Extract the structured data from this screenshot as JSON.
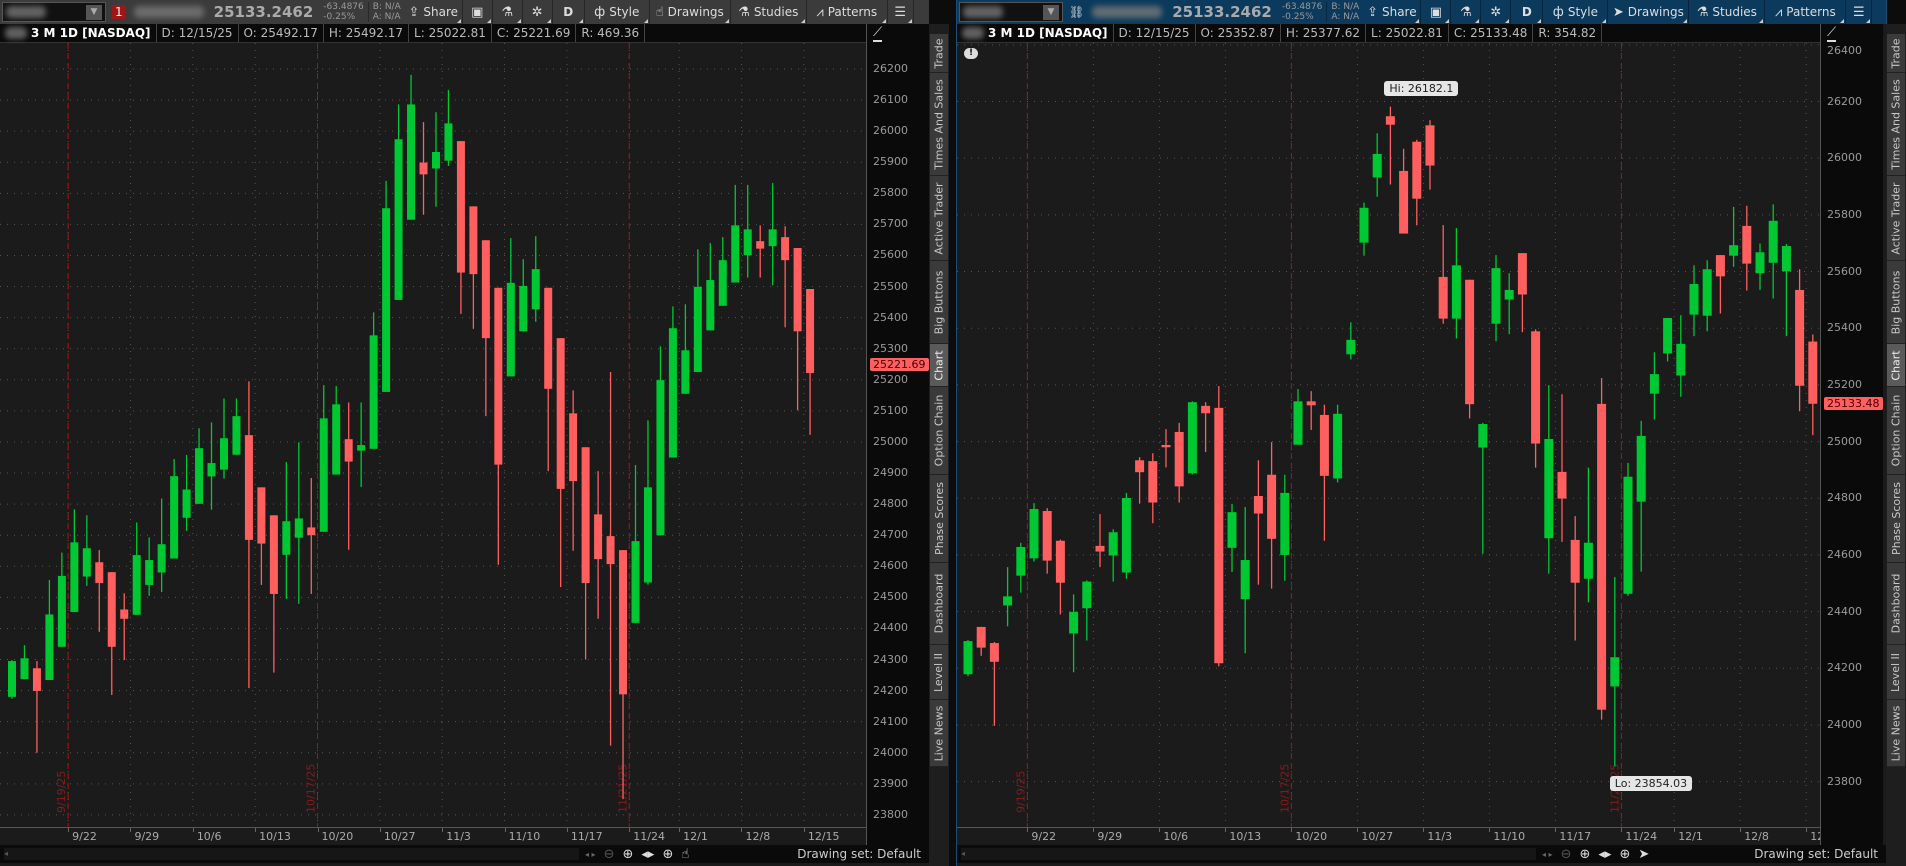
{
  "colors": {
    "up": "#00c832",
    "down": "#ff5f5f",
    "left_toolbar": "#3b3b3b",
    "right_toolbar": "#0b3a5c",
    "expiration_line": "#b01010",
    "grid": "#555555"
  },
  "panels": [
    {
      "toolbar": {
        "badge": "1",
        "last_price": "25133.2462",
        "change": "-63.4876",
        "change_pct": "-0.25%",
        "bid": "B: N/A",
        "ask": "A: N/A",
        "share": "Share",
        "period": "D",
        "style": "Style",
        "drawings": "Drawings",
        "studies": "Studies",
        "patterns": "Patterns",
        "badge_icon": "red-number-badge",
        "drawings_icon": "hand-pointer-icon"
      },
      "info": {
        "title": "3 M 1D [NASDAQ]",
        "date": "D: 12/15/25",
        "open": "O: 25492.17",
        "high": "H: 25492.17",
        "low": "L: 25022.81",
        "close": "C: 25221.69",
        "range": "R: 469.36"
      },
      "last_tag": "25221.69",
      "drawing_set": "Drawing set: Default"
    },
    {
      "toolbar": {
        "badge": "",
        "last_price": "25133.2462",
        "change": "-63.4876",
        "change_pct": "-0.25%",
        "bid": "B: N/A",
        "ask": "A: N/A",
        "share": "Share",
        "period": "D",
        "style": "Style",
        "drawings": "Drawings",
        "studies": "Studies",
        "patterns": "Patterns",
        "badge_icon": "link-icon",
        "drawings_icon": "arrow-pointer-icon"
      },
      "info": {
        "title": "3 M 1D [NASDAQ]",
        "date": "D: 12/15/25",
        "open": "O: 25352.87",
        "high": "H: 25377.62",
        "low": "L: 25022.81",
        "close": "C: 25133.48",
        "range": "R: 354.82"
      },
      "last_tag": "25133.48",
      "hi_label": "Hi: 26182.1",
      "lo_label": "Lo: 23854.03",
      "drawing_set": "Drawing set: Default"
    }
  ],
  "sidebar_tabs": [
    "Trade",
    "Times And Sales",
    "Active Trader",
    "Big Buttons",
    "Chart",
    "Option Chain",
    "Phase Scores",
    "Dashboard",
    "Level II",
    "Live News"
  ],
  "sidebar_active": "Chart",
  "chart_data": [
    {
      "type": "candlestick",
      "x": [
        "9/15",
        "9/16",
        "9/17",
        "9/18",
        "9/19",
        "9/22",
        "9/23",
        "9/24",
        "9/25",
        "9/26",
        "9/29",
        "9/30",
        "10/1",
        "10/2",
        "10/3",
        "10/6",
        "10/7",
        "10/8",
        "10/9",
        "10/10",
        "10/13",
        "10/14",
        "10/15",
        "10/16",
        "10/17",
        "10/20",
        "10/21",
        "10/22",
        "10/23",
        "10/24",
        "10/27",
        "10/28",
        "10/29",
        "10/30",
        "10/31",
        "11/3",
        "11/4",
        "11/5",
        "11/6",
        "11/7",
        "11/10",
        "11/11",
        "11/12",
        "11/13",
        "11/14",
        "11/17",
        "11/18",
        "11/19",
        "11/20",
        "11/21",
        "11/24",
        "11/25",
        "11/26",
        "11/28",
        "12/1",
        "12/2",
        "12/3",
        "12/4",
        "12/5",
        "12/8",
        "12/9",
        "12/10",
        "12/11",
        "12/12",
        "12/15"
      ],
      "ohlc": [
        [
          24180,
          24298,
          24174,
          24295
        ],
        [
          24237,
          24346,
          24237,
          24304
        ],
        [
          24272,
          24295,
          24000,
          24199
        ],
        [
          24234,
          24556,
          24234,
          24445
        ],
        [
          24341,
          24644,
          24341,
          24569
        ],
        [
          24453,
          24783,
          24453,
          24677
        ],
        [
          24567,
          24764,
          24537,
          24658
        ],
        [
          24613,
          24652,
          24389,
          24546
        ],
        [
          24581,
          24581,
          24186,
          24341
        ],
        [
          24461,
          24513,
          24298,
          24431
        ],
        [
          24444,
          24741,
          24444,
          24636
        ],
        [
          24540,
          24693,
          24505,
          24620
        ],
        [
          24580,
          24818,
          24517,
          24671
        ],
        [
          24625,
          24945,
          24625,
          24890
        ],
        [
          24756,
          24958,
          24714,
          24847
        ],
        [
          24801,
          25044,
          24801,
          24980
        ],
        [
          24889,
          25063,
          24782,
          24932
        ],
        [
          24911,
          25140,
          24882,
          25012
        ],
        [
          24959,
          25140,
          24959,
          25083
        ],
        [
          25022,
          25195,
          24208,
          24685
        ],
        [
          24854,
          24854,
          24540,
          24673
        ],
        [
          24764,
          24764,
          24258,
          24511
        ],
        [
          24637,
          24935,
          24495,
          24745
        ],
        [
          24692,
          24999,
          24479,
          24754
        ],
        [
          24725,
          24884,
          24511,
          24700
        ],
        [
          24711,
          25183,
          24711,
          25076
        ],
        [
          24895,
          25180,
          24895,
          25121
        ],
        [
          25009,
          25127,
          24653,
          24937
        ],
        [
          24972,
          25127,
          24855,
          24990
        ],
        [
          24978,
          25417,
          24978,
          25343
        ],
        [
          25161,
          25840,
          25161,
          25752
        ],
        [
          25457,
          26086,
          25457,
          25974
        ],
        [
          25715,
          26181,
          25715,
          26086
        ],
        [
          25899,
          26029,
          25731,
          25861
        ],
        [
          25880,
          26061,
          25757,
          25933
        ],
        [
          25905,
          26133,
          25888,
          26025
        ],
        [
          25968,
          25968,
          25412,
          25545
        ],
        [
          25758,
          25758,
          25364,
          25540
        ],
        [
          25649,
          25649,
          25083,
          25334
        ],
        [
          25496,
          25496,
          24605,
          24927
        ],
        [
          25211,
          25656,
          25211,
          25512
        ],
        [
          25356,
          25588,
          25356,
          25502
        ],
        [
          25427,
          25662,
          25387,
          25556
        ],
        [
          25496,
          25496,
          24906,
          25171
        ],
        [
          25334,
          25334,
          24533,
          24849
        ],
        [
          25092,
          25166,
          24650,
          24874
        ],
        [
          24983,
          24983,
          24300,
          24546
        ],
        [
          24767,
          24906,
          24431,
          24623
        ],
        [
          24697,
          25225,
          24023,
          24607
        ],
        [
          24652,
          24652,
          23851,
          24188
        ],
        [
          24418,
          24926,
          24418,
          24681
        ],
        [
          24548,
          25070,
          24541,
          24854
        ],
        [
          24700,
          25308,
          24700,
          25199
        ],
        [
          24950,
          25436,
          24950,
          25366
        ],
        [
          25155,
          25443,
          25155,
          25295
        ],
        [
          25225,
          25620,
          25225,
          25499
        ],
        [
          25359,
          25640,
          25359,
          25521
        ],
        [
          25438,
          25659,
          25438,
          25585
        ],
        [
          25513,
          25827,
          25513,
          25697
        ],
        [
          25601,
          25827,
          25529,
          25684
        ],
        [
          25646,
          25697,
          25529,
          25622
        ],
        [
          25630,
          25833,
          25504,
          25684
        ],
        [
          25659,
          25694,
          25369,
          25585
        ],
        [
          25624,
          25624,
          25102,
          25356
        ],
        [
          25492.17,
          25492.17,
          25022.81,
          25221.69
        ]
      ],
      "y_ticks": [
        23800,
        23900,
        24000,
        24100,
        24200,
        24300,
        24400,
        24500,
        24600,
        24700,
        24800,
        24900,
        25000,
        25100,
        25200,
        25300,
        25400,
        25500,
        25600,
        25700,
        25800,
        25900,
        26000,
        26100,
        26200
      ],
      "x_ticks": [
        "9/22",
        "9/29",
        "10/6",
        "10/13",
        "10/20",
        "10/27",
        "11/3",
        "11/10",
        "11/17",
        "11/24",
        "12/1",
        "12/8",
        "12/15"
      ],
      "expirations": [
        "9/19/25",
        "10/17/25",
        "11/21/25"
      ],
      "grid": true
    },
    {
      "type": "candlestick",
      "x": [
        "9/15",
        "9/16",
        "9/17",
        "9/18",
        "9/19",
        "9/22",
        "9/23",
        "9/24",
        "9/25",
        "9/26",
        "9/29",
        "9/30",
        "10/1",
        "10/2",
        "10/3",
        "10/6",
        "10/7",
        "10/8",
        "10/9",
        "10/10",
        "10/13",
        "10/14",
        "10/15",
        "10/16",
        "10/17",
        "10/20",
        "10/21",
        "10/22",
        "10/23",
        "10/24",
        "10/27",
        "10/28",
        "10/29",
        "10/30",
        "10/31",
        "11/3",
        "11/4",
        "11/5",
        "11/6",
        "11/7",
        "11/10",
        "11/11",
        "11/12",
        "11/13",
        "11/14",
        "11/17",
        "11/18",
        "11/19",
        "11/20",
        "11/21",
        "11/24",
        "11/25",
        "11/26",
        "11/28",
        "12/1",
        "12/2",
        "12/3",
        "12/4",
        "12/5",
        "12/8",
        "12/9",
        "12/10",
        "12/11",
        "12/12",
        "12/15"
      ],
      "ohlc": [
        [
          24179,
          24300,
          24172,
          24296
        ],
        [
          24346,
          24346,
          24244,
          24273
        ],
        [
          24289,
          24293,
          23997,
          24223
        ],
        [
          24422,
          24557,
          24348,
          24454
        ],
        [
          24527,
          24643,
          24467,
          24628
        ],
        [
          24588,
          24783,
          24577,
          24762
        ],
        [
          24755,
          24765,
          24534,
          24580
        ],
        [
          24650,
          24654,
          24390,
          24502
        ],
        [
          24323,
          24461,
          24186,
          24399
        ],
        [
          24412,
          24510,
          24298,
          24506
        ],
        [
          24632,
          24744,
          24557,
          24612
        ],
        [
          24598,
          24691,
          24506,
          24680
        ],
        [
          24538,
          24819,
          24516,
          24801
        ],
        [
          24934,
          24945,
          24781,
          24892
        ],
        [
          24931,
          24959,
          24712,
          24785
        ],
        [
          24988,
          25044,
          24909,
          24980
        ],
        [
          25034,
          25066,
          24785,
          24842
        ],
        [
          24888,
          25142,
          24884,
          25139
        ],
        [
          25126,
          25139,
          24963,
          25100
        ],
        [
          25119,
          25196,
          24207,
          24218
        ],
        [
          24625,
          24780,
          24540,
          24751
        ],
        [
          24444,
          24769,
          24253,
          24582
        ],
        [
          24808,
          24934,
          24495,
          24746
        ],
        [
          24883,
          24998,
          24481,
          24657
        ],
        [
          24600,
          24883,
          24509,
          24819
        ],
        [
          24989,
          25185,
          24989,
          25142
        ],
        [
          25142,
          25178,
          25041,
          25128
        ],
        [
          25094,
          25130,
          24650,
          24879
        ],
        [
          24870,
          25130,
          24856,
          25098
        ],
        [
          25308,
          25421,
          25290,
          25359
        ],
        [
          25702,
          25843,
          25656,
          25825
        ],
        [
          25932,
          26088,
          25864,
          26015
        ],
        [
          26148,
          26182.1,
          25907,
          26118
        ],
        [
          25955,
          26033,
          25734,
          25734
        ],
        [
          26058,
          26065,
          25763,
          25857
        ],
        [
          26116,
          26134,
          25889,
          25974
        ],
        [
          25581,
          25764,
          25416,
          25434
        ],
        [
          25434,
          25754,
          25364,
          25622
        ],
        [
          25571,
          25571,
          25082,
          25132
        ],
        [
          24979,
          25066,
          24604,
          25062
        ],
        [
          25416,
          25658,
          25354,
          25612
        ],
        [
          25501,
          25594,
          25379,
          25535
        ],
        [
          25665,
          25665,
          25386,
          25519
        ],
        [
          25389,
          25396,
          24908,
          24993
        ],
        [
          24659,
          25199,
          24534,
          25009
        ],
        [
          24893,
          25167,
          24646,
          24799
        ],
        [
          24653,
          24737,
          24298,
          24502
        ],
        [
          24516,
          24908,
          24433,
          24643
        ],
        [
          25133,
          25224,
          24019,
          24054
        ],
        [
          24136,
          24522,
          23854.03,
          24239
        ],
        [
          24463,
          24925,
          24456,
          24876
        ],
        [
          24788,
          25073,
          24541,
          25020
        ],
        [
          25169,
          25315,
          25078,
          25238
        ],
        [
          25311,
          25436,
          25283,
          25436
        ],
        [
          25233,
          25446,
          25158,
          25345
        ],
        [
          25448,
          25622,
          25372,
          25556
        ],
        [
          25444,
          25640,
          25389,
          25608
        ],
        [
          25658,
          25658,
          25452,
          25583
        ],
        [
          25656,
          25828,
          25617,
          25693
        ],
        [
          25761,
          25832,
          25533,
          25628
        ],
        [
          25594,
          25699,
          25535,
          25668
        ],
        [
          25631,
          25837,
          25505,
          25779
        ],
        [
          25601,
          25697,
          25372,
          25690
        ],
        [
          25535,
          25608,
          25107,
          25197
        ],
        [
          25352.87,
          25377.62,
          25022.81,
          25133.48
        ]
      ],
      "y_ticks": [
        23800,
        24000,
        24200,
        24400,
        24600,
        24800,
        25000,
        25200,
        25400,
        25600,
        25800,
        26000,
        26200,
        26400
      ],
      "x_ticks": [
        "9/22",
        "9/29",
        "10/6",
        "10/13",
        "10/20",
        "10/27",
        "11/3",
        "11/10",
        "11/17",
        "11/24",
        "12/1",
        "12/8",
        "12/15"
      ],
      "expirations": [
        "9/19/25",
        "10/17/25",
        "11/21/25"
      ],
      "grid": true
    }
  ]
}
